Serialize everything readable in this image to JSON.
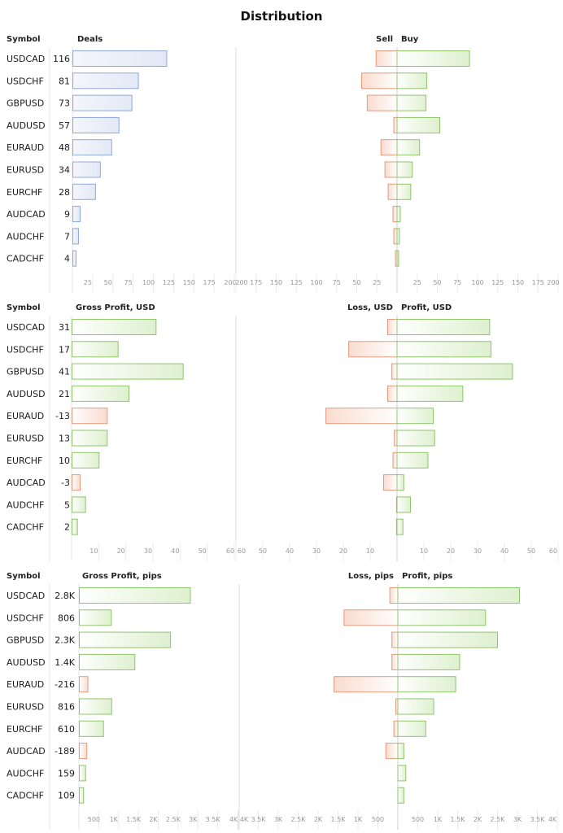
{
  "page": {
    "title": "Distribution"
  },
  "colors": {
    "blue_fill": "#e6ecf7",
    "blue_stroke": "#8ea8dc",
    "green_fill": "#e6f3da",
    "green_stroke": "#8fc56b",
    "red_fill": "#fbe6dd",
    "red_stroke": "#e49b7e",
    "grid": "#dcdcdc",
    "tick": "#9a9a9a"
  },
  "chart_data": [
    {
      "type": "bar",
      "symbol_header": "Symbol",
      "value_header": "Deals",
      "right_left_label": "Sell",
      "right_right_label": "Buy",
      "categories": [
        "USDCAD",
        "USDCHF",
        "GBPUSD",
        "AUDUSD",
        "EURAUD",
        "EURUSD",
        "EURCHF",
        "AUDCAD",
        "AUDCHF",
        "CADCHF"
      ],
      "value_labels": [
        "116",
        "81",
        "73",
        "57",
        "48",
        "34",
        "28",
        "9",
        "7",
        "4"
      ],
      "values": [
        116,
        81,
        73,
        57,
        48,
        34,
        28,
        9,
        7,
        4
      ],
      "left_max": 200,
      "left_ticks": [
        "25",
        "50",
        "75",
        "100",
        "125",
        "150",
        "175",
        "200"
      ],
      "left_tick_values": [
        25,
        50,
        75,
        100,
        125,
        150,
        175,
        200
      ],
      "right_max": 200,
      "right_ticks_left": [
        "200",
        "175",
        "150",
        "125",
        "100",
        "75",
        "50",
        "25"
      ],
      "right_ticks_left_values": [
        200,
        175,
        150,
        125,
        100,
        75,
        50,
        25
      ],
      "right_ticks_right": [
        "25",
        "50",
        "75",
        "100",
        "125",
        "150",
        "175",
        "200"
      ],
      "right_ticks_right_values": [
        25,
        50,
        75,
        100,
        125,
        150,
        175,
        200
      ],
      "left_series": [
        26,
        44,
        37,
        4,
        20,
        15,
        11,
        5,
        4,
        2
      ],
      "right_series": [
        90,
        37,
        36,
        53,
        28,
        19,
        17,
        4,
        3,
        2
      ]
    },
    {
      "type": "bar",
      "symbol_header": "Symbol",
      "value_header": "Gross Profit, USD",
      "right_left_label": "Loss, USD",
      "right_right_label": "Profit, USD",
      "categories": [
        "USDCAD",
        "USDCHF",
        "GBPUSD",
        "AUDUSD",
        "EURAUD",
        "EURUSD",
        "EURCHF",
        "AUDCAD",
        "AUDCHF",
        "CADCHF"
      ],
      "value_labels": [
        "31",
        "17",
        "41",
        "21",
        "-13",
        "13",
        "10",
        "-3",
        "5",
        "2"
      ],
      "values": [
        31,
        17,
        41,
        21,
        -13,
        13,
        10,
        -3,
        5,
        2
      ],
      "left_max": 60,
      "left_ticks": [
        "10",
        "20",
        "30",
        "40",
        "50",
        "60"
      ],
      "left_tick_values": [
        10,
        20,
        30,
        40,
        50,
        60
      ],
      "right_max": 60,
      "right_ticks_left": [
        "60",
        "50",
        "40",
        "30",
        "20",
        "10"
      ],
      "right_ticks_left_values": [
        60,
        50,
        40,
        30,
        20,
        10
      ],
      "right_ticks_right": [
        "10",
        "20",
        "30",
        "40",
        "50",
        "60"
      ],
      "right_ticks_right_values": [
        10,
        20,
        30,
        40,
        50,
        60
      ],
      "left_series": [
        3.5,
        18,
        2,
        3.5,
        26.5,
        1,
        1.5,
        5,
        0.2,
        0.2
      ],
      "right_series": [
        34.5,
        35,
        43,
        24.5,
        13.5,
        14,
        11.5,
        2.5,
        5,
        2.2
      ]
    },
    {
      "type": "bar",
      "symbol_header": "Symbol",
      "value_header": "Gross Profit, pips",
      "right_left_label": "Loss, pips",
      "right_right_label": "Profit, pips",
      "categories": [
        "USDCAD",
        "USDCHF",
        "GBPUSD",
        "AUDUSD",
        "EURAUD",
        "EURUSD",
        "EURCHF",
        "AUDCAD",
        "AUDCHF",
        "CADCHF"
      ],
      "value_labels": [
        "2.8K",
        "806",
        "2.3K",
        "1.4K",
        "-216",
        "816",
        "610",
        "-189",
        "159",
        "109"
      ],
      "values": [
        2800,
        806,
        2300,
        1400,
        -216,
        816,
        610,
        -189,
        159,
        109
      ],
      "left_max": 4000,
      "left_ticks": [
        "500",
        "1K",
        "1.5K",
        "2K",
        "2.5K",
        "3K",
        "3.5K",
        "4K"
      ],
      "left_tick_values": [
        500,
        1000,
        1500,
        2000,
        2500,
        3000,
        3500,
        4000
      ],
      "right_max": 4000,
      "right_ticks_left": [
        "4K",
        "3.5K",
        "3K",
        "2.5K",
        "2K",
        "1.5K",
        "1K",
        "500"
      ],
      "right_ticks_left_values": [
        4000,
        3500,
        3000,
        2500,
        2000,
        1500,
        1000,
        500
      ],
      "right_ticks_right": [
        "500",
        "1K",
        "1.5K",
        "2K",
        "2.5K",
        "3K",
        "3.5K",
        "4K"
      ],
      "right_ticks_right_values": [
        500,
        1000,
        1500,
        2000,
        2500,
        3000,
        3500,
        4000
      ],
      "left_series": [
        200,
        1350,
        150,
        150,
        1600,
        50,
        100,
        300,
        0,
        0
      ],
      "right_series": [
        3050,
        2200,
        2500,
        1550,
        1450,
        900,
        700,
        150,
        200,
        150
      ]
    }
  ]
}
